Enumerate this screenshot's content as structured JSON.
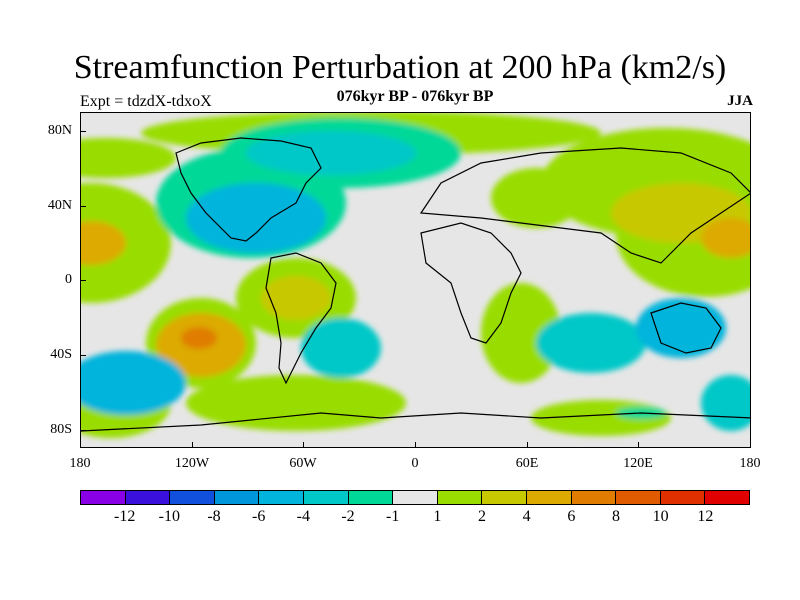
{
  "header": {
    "title": "Streamfunction Perturbation at 200 hPa (km2/s)",
    "subtitle": "076kyr BP - 076kyr BP",
    "experiment": "Expt = tdzdX-tdxoX",
    "season": "JJA"
  },
  "map": {
    "lat_labels": [
      "80N",
      "40N",
      "0",
      "40S",
      "80S"
    ],
    "lon_labels": [
      "180",
      "120W",
      "60W",
      "0",
      "60E",
      "120E",
      "180"
    ],
    "colors": {
      "neutral": "#e6e6e6",
      "pos1": "#99dd00",
      "pos2": "#c8c800",
      "pos3": "#dcaa00",
      "pos4": "#e07d00",
      "neg1": "#00d898",
      "neg2": "#00c8c8",
      "neg3": "#00b4dc",
      "neg4": "#0096dc",
      "coast": "#000000"
    }
  },
  "colorbar": {
    "colors": [
      "#8a00e6",
      "#3a10dc",
      "#1050dc",
      "#0096dc",
      "#00b4dc",
      "#00c8c8",
      "#00d898",
      "#e6e6e6",
      "#99dd00",
      "#c8c800",
      "#dcaa00",
      "#e07d00",
      "#e05a00",
      "#e03000",
      "#e00000"
    ],
    "labels": [
      "-12",
      "-10",
      "-8",
      "-6",
      "-4",
      "-2",
      "-1",
      "1",
      "2",
      "4",
      "6",
      "8",
      "10",
      "12"
    ]
  }
}
